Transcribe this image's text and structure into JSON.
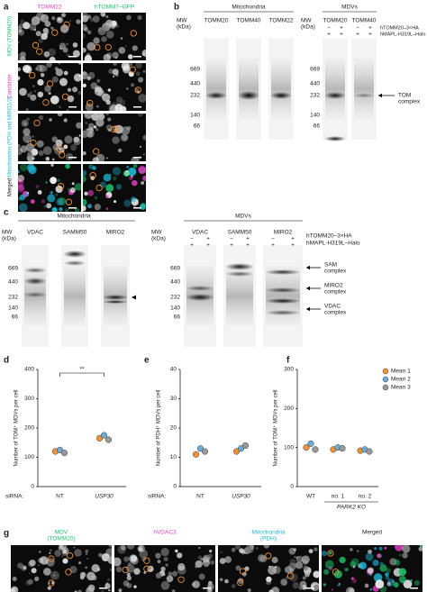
{
  "figure": {
    "a": {
      "label": "a",
      "columns": [
        "TOMM22",
        "hTOMM7–GFP"
      ],
      "rows": [
        "MDV (TOMM20)",
        "Candidate",
        "Mitochondria (PDH and MIRO1/2)",
        "Merged"
      ]
    },
    "b": {
      "label": "b",
      "groups": [
        "Mitochondria",
        "MDVs"
      ],
      "mw": [
        "MW",
        "(kDa)"
      ],
      "lanes": [
        "TOMM20",
        "TOMM40",
        "TOMM22",
        "TOMM20",
        "TOMM40"
      ],
      "markers": [
        "669",
        "440",
        "232",
        "140",
        "66"
      ],
      "constructs": [
        "hTOMM20–3×HA",
        "hMAPL-H319L–Halo"
      ],
      "signs": [
        [
          "−",
          "+",
          "−",
          "+"
        ],
        [
          "+",
          "+",
          "+",
          "+"
        ]
      ],
      "annotation": [
        "TOM",
        "complex"
      ]
    },
    "c": {
      "label": "c",
      "groups": [
        "Mitochondria",
        "MDVs"
      ],
      "mw": [
        "MW",
        "(kDa)"
      ],
      "lanes": [
        "VDAC",
        "SAMM50",
        "MIRO2",
        "VDAC",
        "SAMM50",
        "MIRO2"
      ],
      "markers": [
        "669",
        "440",
        "232",
        "140",
        "66"
      ],
      "constructs": [
        "hTOMM20–3×HA",
        "hMAPL-H319L–Halo"
      ],
      "signs": [
        [
          "−",
          "+",
          "−",
          "+",
          "−",
          "+"
        ],
        [
          "+",
          "+",
          "+",
          "+",
          "+",
          "+"
        ]
      ],
      "annotations": [
        [
          "SAM",
          "complex"
        ],
        [
          "MIRO2",
          "complex"
        ],
        [
          "VDAC",
          "complex"
        ]
      ]
    },
    "g": {
      "label": "g",
      "columns": [
        [
          "MDV",
          "(TOMM20)"
        ],
        [
          "hVDAC3"
        ],
        [
          "Mitochondria",
          "(PDH)"
        ],
        [
          "Merged"
        ]
      ]
    }
  },
  "chart_data": [
    {
      "type": "scatter",
      "label": "d",
      "y_label": "Number of TOM⁺ MDVs per cell",
      "x_label": "siRNA:",
      "categories": [
        "NT",
        "USP30"
      ],
      "ylim": [
        0,
        400
      ],
      "yticks": [
        0,
        100,
        200,
        300,
        400
      ],
      "significance": "**",
      "series": [
        {
          "color": "#f0923a",
          "values": [
            120,
            165
          ]
        },
        {
          "color": "#6aaed6",
          "values": [
            125,
            175
          ]
        },
        {
          "color": "#9a9a9a",
          "values": [
            115,
            160
          ]
        }
      ]
    },
    {
      "type": "scatter",
      "label": "e",
      "y_label": "Number of PDH⁺ MDVs per cell",
      "x_label": "siRNA:",
      "categories": [
        "NT",
        "USP30"
      ],
      "ylim": [
        0,
        40
      ],
      "yticks": [
        0,
        10,
        20,
        30,
        40
      ],
      "series": [
        {
          "color": "#f0923a",
          "values": [
            11,
            12
          ]
        },
        {
          "color": "#6aaed6",
          "values": [
            13,
            13
          ]
        },
        {
          "color": "#9a9a9a",
          "values": [
            12,
            14
          ]
        }
      ]
    },
    {
      "type": "scatter",
      "label": "f",
      "y_label": "Number of TOM⁺ MDVs per cell",
      "categories": [
        "WT",
        "no. 1",
        "no. 2"
      ],
      "group_label": "PARK2 KO",
      "ylim": [
        0,
        300
      ],
      "yticks": [
        0,
        100,
        200,
        300
      ],
      "legend": "top-right",
      "series": [
        {
          "name": "Mean 1",
          "color": "#f0923a",
          "values": [
            100,
            95,
            92
          ]
        },
        {
          "name": "Mean 2",
          "color": "#6aaed6",
          "values": [
            110,
            100,
            95
          ]
        },
        {
          "name": "Mean 3",
          "color": "#9a9a9a",
          "values": [
            95,
            98,
            90
          ]
        }
      ]
    }
  ]
}
